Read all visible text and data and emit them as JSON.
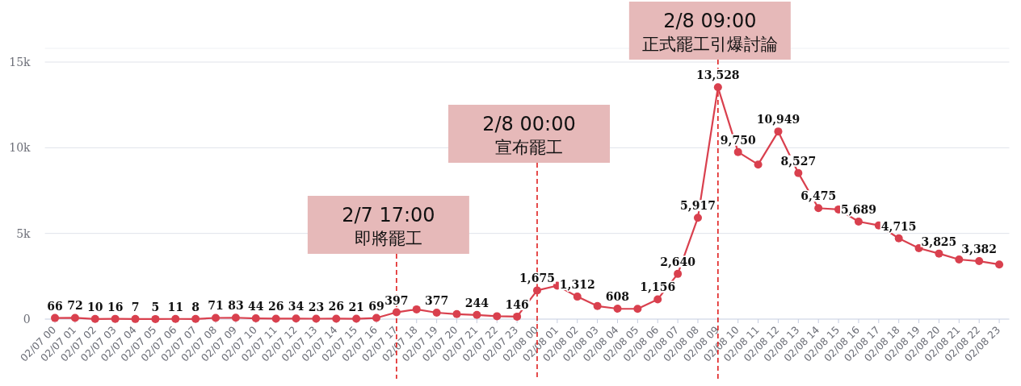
{
  "chart_data": {
    "type": "line",
    "categories": [
      "02/07 00",
      "02/07 01",
      "02/07 02",
      "02/07 03",
      "02/07 04",
      "02/07 05",
      "02/07 06",
      "02/07 07",
      "02/07 08",
      "02/07 09",
      "02/07 10",
      "02/07 11",
      "02/07 12",
      "02/07 13",
      "02/07 14",
      "02/07 15",
      "02/07 16",
      "02/07 17",
      "02/07 18",
      "02/07 19",
      "02/07 20",
      "02/07 21",
      "02/07 22",
      "02/07 23",
      "02/08 00",
      "02/08 01",
      "02/08 02",
      "02/08 03",
      "02/08 04",
      "02/08 05",
      "02/08 06",
      "02/08 07",
      "02/08 08",
      "02/08 09",
      "02/08 10",
      "02/08 11",
      "02/08 12",
      "02/08 13",
      "02/08 14",
      "02/08 15",
      "02/08 16",
      "02/08 17",
      "02/08 18",
      "02/08 19",
      "02/08 20",
      "02/08 21",
      "02/08 22",
      "02/08 23"
    ],
    "series": [
      {
        "color": "#d9404e",
        "values": [
          66,
          72,
          10,
          16,
          7,
          5,
          11,
          8,
          71,
          83,
          44,
          26,
          34,
          23,
          26,
          21,
          69,
          397,
          570,
          377,
          290,
          244,
          170,
          146,
          1675,
          1950,
          1312,
          760,
          608,
          600,
          1156,
          2640,
          5917,
          13528,
          9750,
          9020,
          10949,
          8527,
          6475,
          6400,
          5689,
          5470,
          4715,
          4140,
          3825,
          3480,
          3382,
          3190
        ],
        "value_labels": [
          "66",
          "72",
          "10",
          "16",
          "7",
          "5",
          "11",
          "8",
          "71",
          "83",
          "44",
          "26",
          "34",
          "23",
          "26",
          "21",
          "69",
          "397",
          null,
          "377",
          null,
          "244",
          null,
          "146",
          "1,675",
          null,
          "1,312",
          null,
          "608",
          null,
          "1,156",
          "2,640",
          "5,917",
          "13,528",
          "9,750",
          null,
          "10,949",
          "8,527",
          "6,475",
          null,
          "5,689",
          null,
          "4,715",
          null,
          "3,825",
          null,
          "3,382",
          null
        ]
      }
    ],
    "ylim": [
      0,
      15800
    ],
    "yticks": [
      0,
      {
        "value": 5000,
        "label": "5k"
      },
      {
        "value": 10000,
        "label": "10k"
      },
      {
        "value": 15000,
        "label": "15k"
      }
    ],
    "grid": "y",
    "marker": "circle",
    "line_style": "solid",
    "ref_lines": [
      {
        "axis": "x",
        "value": "02/07 17",
        "label": "2/7 17:00\n即將罷工",
        "color": "#e02020",
        "line_style": "dashed"
      },
      {
        "axis": "x",
        "value": "02/08 00",
        "label": "2/8 00:00\n宣布罷工",
        "color": "#e02020",
        "line_style": "dashed"
      },
      {
        "axis": "x",
        "value": "02/08 09",
        "label": "2/8 09:00\n正式罷工引爆討論",
        "color": "#e02020",
        "line_style": "dashed"
      }
    ]
  }
}
